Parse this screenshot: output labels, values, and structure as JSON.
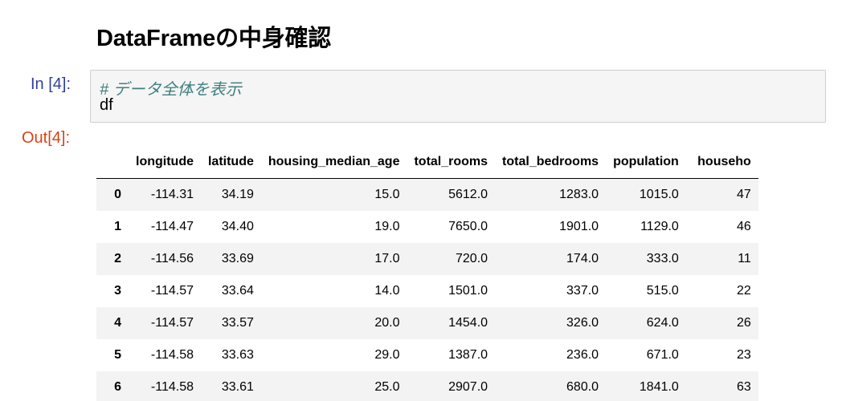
{
  "heading": "DataFrameの中身確認",
  "input_cell": {
    "prompt": "In [4]:",
    "comment": "# データ全体を表示",
    "code": "df"
  },
  "output_cell": {
    "prompt": "Out[4]:"
  },
  "dataframe": {
    "columns": [
      "",
      "longitude",
      "latitude",
      "housing_median_age",
      "total_rooms",
      "total_bedrooms",
      "population",
      "househo"
    ],
    "rows": [
      {
        "index": "0",
        "values": [
          "-114.31",
          "34.19",
          "15.0",
          "5612.0",
          "1283.0",
          "1015.0",
          "47"
        ]
      },
      {
        "index": "1",
        "values": [
          "-114.47",
          "34.40",
          "19.0",
          "7650.0",
          "1901.0",
          "1129.0",
          "46"
        ]
      },
      {
        "index": "2",
        "values": [
          "-114.56",
          "33.69",
          "17.0",
          "720.0",
          "174.0",
          "333.0",
          "11"
        ]
      },
      {
        "index": "3",
        "values": [
          "-114.57",
          "33.64",
          "14.0",
          "1501.0",
          "337.0",
          "515.0",
          "22"
        ]
      },
      {
        "index": "4",
        "values": [
          "-114.57",
          "33.57",
          "20.0",
          "1454.0",
          "326.0",
          "624.0",
          "26"
        ]
      },
      {
        "index": "5",
        "values": [
          "-114.58",
          "33.63",
          "29.0",
          "1387.0",
          "236.0",
          "671.0",
          "23"
        ]
      },
      {
        "index": "6",
        "values": [
          "-114.58",
          "33.61",
          "25.0",
          "2907.0",
          "680.0",
          "1841.0",
          "63"
        ]
      }
    ]
  }
}
